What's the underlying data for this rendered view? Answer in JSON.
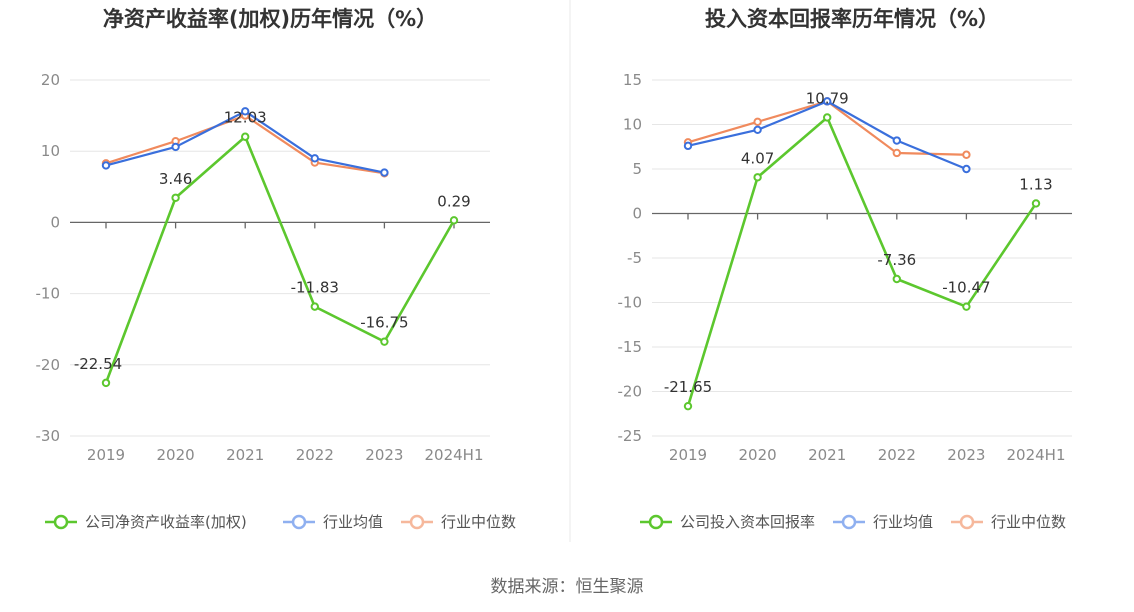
{
  "colors": {
    "company": "#5cc72e",
    "industry_avg": "#3a6fdc",
    "industry_median": "#f08a5d",
    "legend_avg": "#8fb0f0",
    "legend_median": "#f6b89c",
    "grid": "#e6e6e6",
    "axis": "#666666",
    "divider": "#e8e8e8"
  },
  "source": "数据来源：恒生聚源",
  "chart_data": [
    {
      "type": "line",
      "title": "净资产收益率(加权)历年情况（%）",
      "categories": [
        "2019",
        "2020",
        "2021",
        "2022",
        "2023",
        "2024H1"
      ],
      "ylim": [
        -30,
        20
      ],
      "yticks": [
        "20",
        "10",
        "0",
        "-10",
        "-20",
        "-30"
      ],
      "ytick_values": [
        20,
        10,
        0,
        -10,
        -20,
        -30
      ],
      "grid": true,
      "legend_position": "bottom",
      "series": [
        {
          "name": "公司净资产收益率(加权)",
          "role": "company",
          "values": [
            -22.54,
            3.46,
            12.03,
            -11.83,
            -16.75,
            0.29
          ],
          "labels": [
            "-22.54",
            "3.46",
            "12.03",
            "-11.83",
            "-16.75",
            "0.29"
          ]
        },
        {
          "name": "行业均值",
          "role": "industry_avg",
          "values": [
            8.0,
            10.6,
            15.6,
            9.0,
            7.0,
            null
          ]
        },
        {
          "name": "行业中位数",
          "role": "industry_median",
          "values": [
            8.3,
            11.4,
            15.0,
            8.4,
            6.9,
            null
          ]
        }
      ]
    },
    {
      "type": "line",
      "title": "投入资本回报率历年情况（%）",
      "categories": [
        "2019",
        "2020",
        "2021",
        "2022",
        "2023",
        "2024H1"
      ],
      "ylim": [
        -25,
        15
      ],
      "yticks": [
        "15",
        "10",
        "5",
        "0",
        "-5",
        "-10",
        "-15",
        "-20",
        "-25"
      ],
      "ytick_values": [
        15,
        10,
        5,
        0,
        -5,
        -10,
        -15,
        -20,
        -25
      ],
      "grid": true,
      "legend_position": "bottom",
      "series": [
        {
          "name": "公司投入资本回报率",
          "role": "company",
          "values": [
            -21.65,
            4.07,
            10.79,
            -7.36,
            -10.47,
            1.13
          ],
          "labels": [
            "-21.65",
            "4.07",
            "10.79",
            "-7.36",
            "-10.47",
            "1.13"
          ]
        },
        {
          "name": "行业均值",
          "role": "industry_avg",
          "values": [
            7.6,
            9.4,
            12.6,
            8.2,
            5.0,
            null
          ]
        },
        {
          "name": "行业中位数",
          "role": "industry_median",
          "values": [
            8.0,
            10.3,
            12.6,
            6.8,
            6.6,
            null
          ]
        }
      ]
    }
  ]
}
